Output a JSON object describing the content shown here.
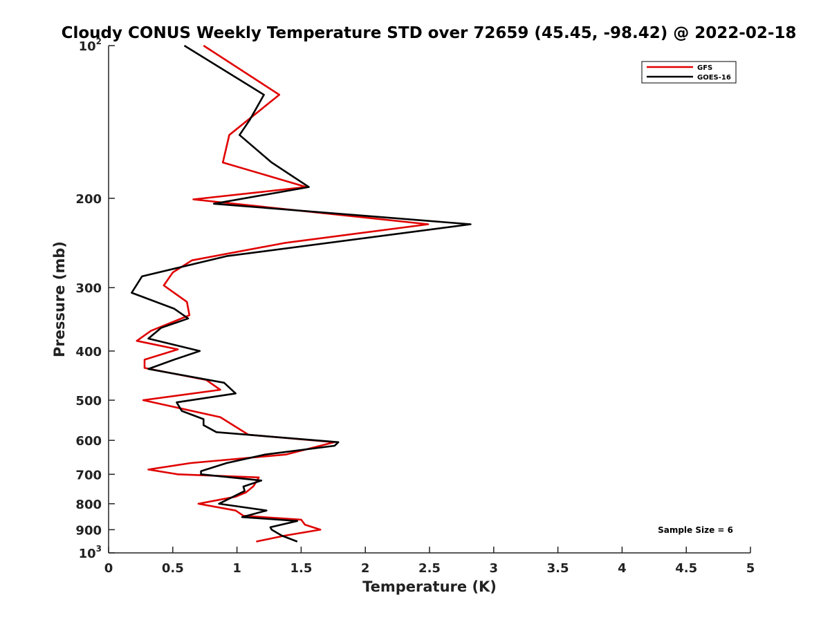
{
  "chart_data": {
    "type": "line",
    "title": "Cloudy CONUS Weekly Temperature STD over 72659 (45.45, -98.42) @ 2022-02-18",
    "xlabel": "Temperature (K)",
    "ylabel": "Pressure (mb)",
    "xlim": [
      0,
      5
    ],
    "ylim": [
      100,
      1000
    ],
    "y_scale": "log",
    "y_reversed": true,
    "grid": false,
    "legend_position": "top-right",
    "x_ticks": [
      {
        "value": 0,
        "label": "0"
      },
      {
        "value": 0.5,
        "label": "0.5"
      },
      {
        "value": 1,
        "label": "1"
      },
      {
        "value": 1.5,
        "label": "1.5"
      },
      {
        "value": 2,
        "label": "2"
      },
      {
        "value": 2.5,
        "label": "2.5"
      },
      {
        "value": 3,
        "label": "3"
      },
      {
        "value": 3.5,
        "label": "3.5"
      },
      {
        "value": 4,
        "label": "4"
      },
      {
        "value": 4.5,
        "label": "4.5"
      },
      {
        "value": 5,
        "label": "5"
      }
    ],
    "y_ticks": [
      {
        "value": 100,
        "label": "10",
        "sup": "2"
      },
      {
        "value": 200,
        "label": "200"
      },
      {
        "value": 300,
        "label": "300"
      },
      {
        "value": 400,
        "label": "400"
      },
      {
        "value": 500,
        "label": "500"
      },
      {
        "value": 600,
        "label": "600"
      },
      {
        "value": 700,
        "label": "700"
      },
      {
        "value": 800,
        "label": "800"
      },
      {
        "value": 900,
        "label": "900"
      },
      {
        "value": 1000,
        "label": "10",
        "sup": "3"
      }
    ],
    "series": [
      {
        "name": "GFS",
        "color": "#e00000",
        "points": [
          [
            0.74,
            100
          ],
          [
            1.33,
            125
          ],
          [
            0.94,
            150
          ],
          [
            0.89,
            170
          ],
          [
            1.54,
            190
          ],
          [
            0.66,
            201
          ],
          [
            2.49,
            225
          ],
          [
            1.37,
            245
          ],
          [
            0.65,
            265
          ],
          [
            0.5,
            280
          ],
          [
            0.43,
            297
          ],
          [
            0.61,
            320
          ],
          [
            0.63,
            340
          ],
          [
            0.33,
            365
          ],
          [
            0.22,
            382
          ],
          [
            0.54,
            397
          ],
          [
            0.28,
            416
          ],
          [
            0.28,
            432
          ],
          [
            0.76,
            456
          ],
          [
            0.87,
            477
          ],
          [
            0.27,
            500
          ],
          [
            0.87,
            540
          ],
          [
            1.09,
            585
          ],
          [
            1.76,
            605
          ],
          [
            1.38,
            640
          ],
          [
            0.64,
            665
          ],
          [
            0.31,
            685
          ],
          [
            0.54,
            700
          ],
          [
            1.17,
            710
          ],
          [
            1.13,
            738
          ],
          [
            1.07,
            760
          ],
          [
            0.99,
            775
          ],
          [
            0.7,
            800
          ],
          [
            0.99,
            825
          ],
          [
            1.05,
            845
          ],
          [
            1.5,
            860
          ],
          [
            1.53,
            880
          ],
          [
            1.65,
            900
          ],
          [
            1.37,
            925
          ],
          [
            1.15,
            950
          ]
        ]
      },
      {
        "name": "GOES-16",
        "color": "#000000",
        "points": [
          [
            0.59,
            100
          ],
          [
            1.21,
            125
          ],
          [
            1.1,
            140
          ],
          [
            1.02,
            150
          ],
          [
            1.27,
            170
          ],
          [
            1.56,
            190
          ],
          [
            0.82,
            205
          ],
          [
            2.82,
            225
          ],
          [
            0.92,
            260
          ],
          [
            0.26,
            285
          ],
          [
            0.18,
            307
          ],
          [
            0.51,
            330
          ],
          [
            0.62,
            345
          ],
          [
            0.41,
            360
          ],
          [
            0.31,
            378
          ],
          [
            0.71,
            400
          ],
          [
            0.51,
            416
          ],
          [
            0.31,
            434
          ],
          [
            0.9,
            462
          ],
          [
            0.99,
            485
          ],
          [
            0.53,
            505
          ],
          [
            0.57,
            525
          ],
          [
            0.74,
            545
          ],
          [
            0.74,
            560
          ],
          [
            0.84,
            578
          ],
          [
            1.79,
            605
          ],
          [
            1.76,
            615
          ],
          [
            1.22,
            640
          ],
          [
            0.92,
            665
          ],
          [
            0.72,
            690
          ],
          [
            0.72,
            700
          ],
          [
            1.19,
            720
          ],
          [
            1.05,
            740
          ],
          [
            1.06,
            755
          ],
          [
            0.86,
            800
          ],
          [
            1.23,
            825
          ],
          [
            1.04,
            850
          ],
          [
            1.47,
            865
          ],
          [
            1.26,
            890
          ],
          [
            1.27,
            900
          ],
          [
            1.35,
            925
          ],
          [
            1.47,
            950
          ]
        ]
      }
    ],
    "annotations": [
      "Sample Size = 6"
    ]
  }
}
